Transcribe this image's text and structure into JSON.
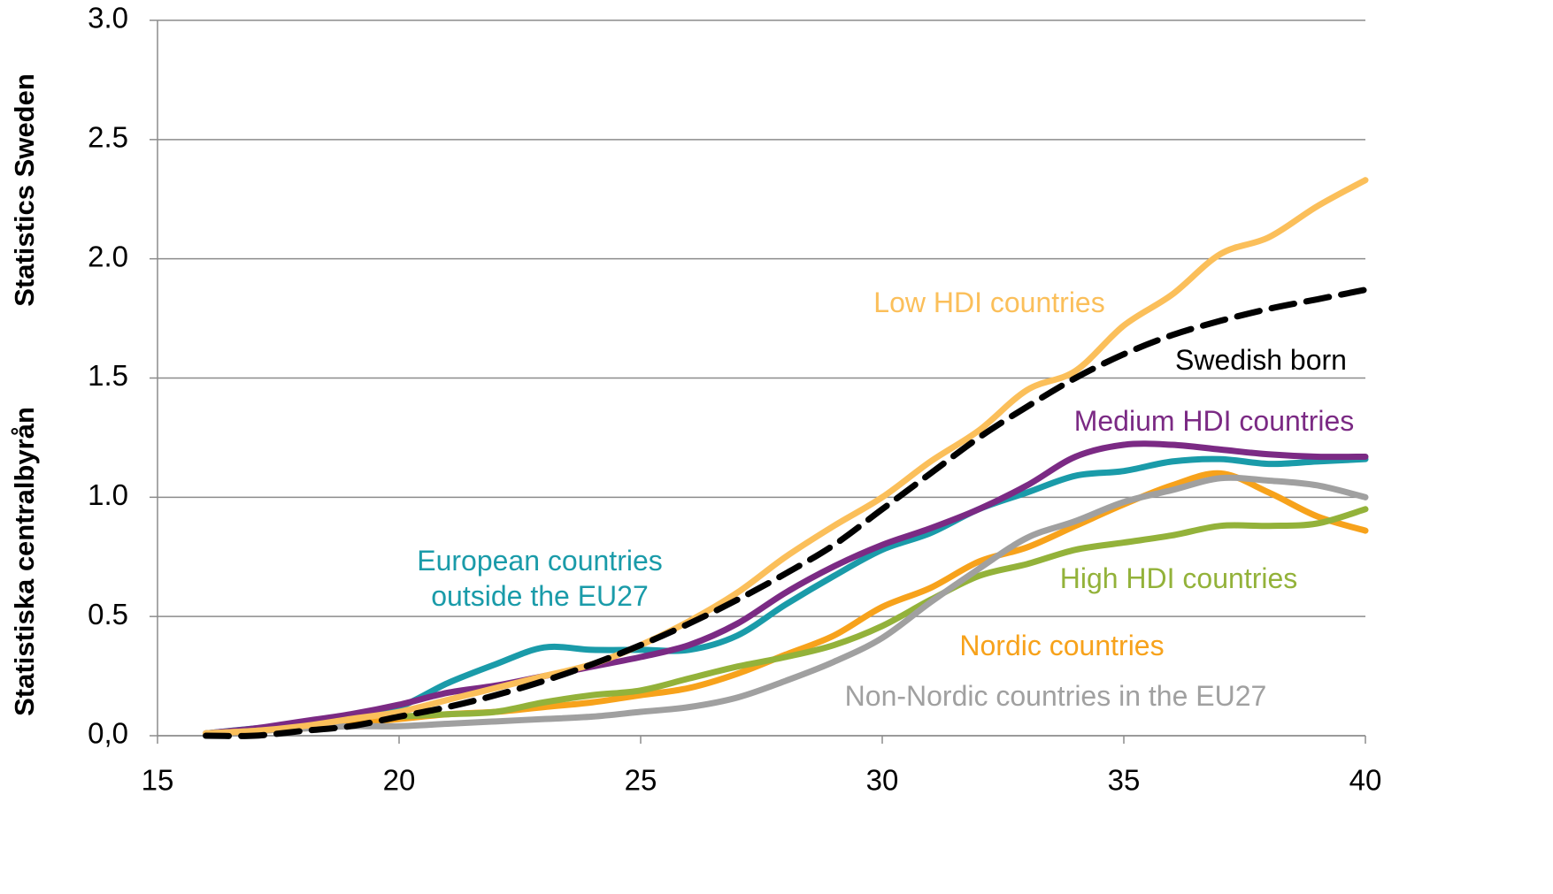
{
  "chart_data": {
    "type": "line",
    "side_labels": [
      "Statistiska centralbyrån",
      "Statistics Sweden"
    ],
    "x": [
      16,
      17,
      18,
      19,
      20,
      21,
      22,
      23,
      24,
      25,
      26,
      27,
      28,
      29,
      30,
      31,
      32,
      33,
      34,
      35,
      36,
      37,
      38,
      39,
      40
    ],
    "xlim": [
      15,
      40
    ],
    "xticks": [
      15,
      20,
      25,
      30,
      35,
      40
    ],
    "ylim": [
      0,
      3
    ],
    "yticks": [
      {
        "value": 0,
        "label": "0,0"
      },
      0.5,
      {
        "value": 1,
        "label": "1.0"
      },
      1.5,
      {
        "value": 2,
        "label": "2.0"
      },
      2.5,
      {
        "value": 3,
        "label": "3.0"
      }
    ],
    "grid": true,
    "series": [
      {
        "name": "European countries outside the EU27",
        "color": "#1a9ba9",
        "values": [
          0.01,
          0.03,
          0.05,
          0.08,
          0.12,
          0.22,
          0.3,
          0.37,
          0.36,
          0.36,
          0.36,
          0.42,
          0.55,
          0.67,
          0.78,
          0.85,
          0.95,
          1.02,
          1.09,
          1.11,
          1.15,
          1.16,
          1.14,
          1.15,
          1.16
        ]
      },
      {
        "name": "Medium HDI countries",
        "color": "#7b2a84",
        "values": [
          0.01,
          0.03,
          0.06,
          0.09,
          0.13,
          0.18,
          0.21,
          0.25,
          0.29,
          0.33,
          0.38,
          0.47,
          0.6,
          0.71,
          0.8,
          0.87,
          0.95,
          1.05,
          1.17,
          1.22,
          1.22,
          1.2,
          1.18,
          1.17,
          1.17
        ]
      },
      {
        "name": "Nordic countries",
        "color": "#f7a21b",
        "values": [
          0.01,
          0.02,
          0.03,
          0.05,
          0.07,
          0.09,
          0.1,
          0.12,
          0.14,
          0.17,
          0.2,
          0.26,
          0.34,
          0.42,
          0.54,
          0.62,
          0.73,
          0.79,
          0.88,
          0.97,
          1.05,
          1.1,
          1.02,
          0.92,
          0.86
        ]
      },
      {
        "name": "High HDI countries",
        "color": "#93b23a",
        "values": [
          null,
          null,
          null,
          null,
          0.08,
          0.09,
          0.1,
          0.14,
          0.17,
          0.19,
          0.24,
          0.29,
          0.33,
          0.38,
          0.46,
          0.57,
          0.67,
          0.72,
          0.78,
          0.81,
          0.84,
          0.88,
          0.88,
          0.89,
          0.95
        ]
      },
      {
        "name": "Non-Nordic countries in the EU27",
        "color": "#a0a0a0",
        "values": [
          0.01,
          0.02,
          0.03,
          0.04,
          0.04,
          0.05,
          0.06,
          0.07,
          0.08,
          0.1,
          0.12,
          0.16,
          0.23,
          0.31,
          0.41,
          0.56,
          0.7,
          0.83,
          0.9,
          0.98,
          1.03,
          1.08,
          1.07,
          1.05,
          1.0
        ]
      },
      {
        "name": "Low HDI countries",
        "color": "#fbbf5a",
        "values": [
          0.01,
          0.02,
          0.04,
          0.07,
          0.1,
          0.15,
          0.2,
          0.25,
          0.3,
          0.38,
          0.48,
          0.6,
          0.75,
          0.88,
          1.0,
          1.15,
          1.28,
          1.45,
          1.53,
          1.72,
          1.85,
          2.02,
          2.09,
          2.22,
          2.33
        ]
      },
      {
        "name": "Swedish born",
        "color": "#000000",
        "dashed": true,
        "values": [
          0,
          0,
          0.02,
          0.04,
          0.08,
          0.12,
          0.17,
          0.23,
          0.3,
          0.38,
          0.47,
          0.57,
          0.68,
          0.8,
          0.95,
          1.1,
          1.25,
          1.38,
          1.5,
          1.6,
          1.68,
          1.74,
          1.79,
          1.83,
          1.87
        ]
      }
    ]
  }
}
